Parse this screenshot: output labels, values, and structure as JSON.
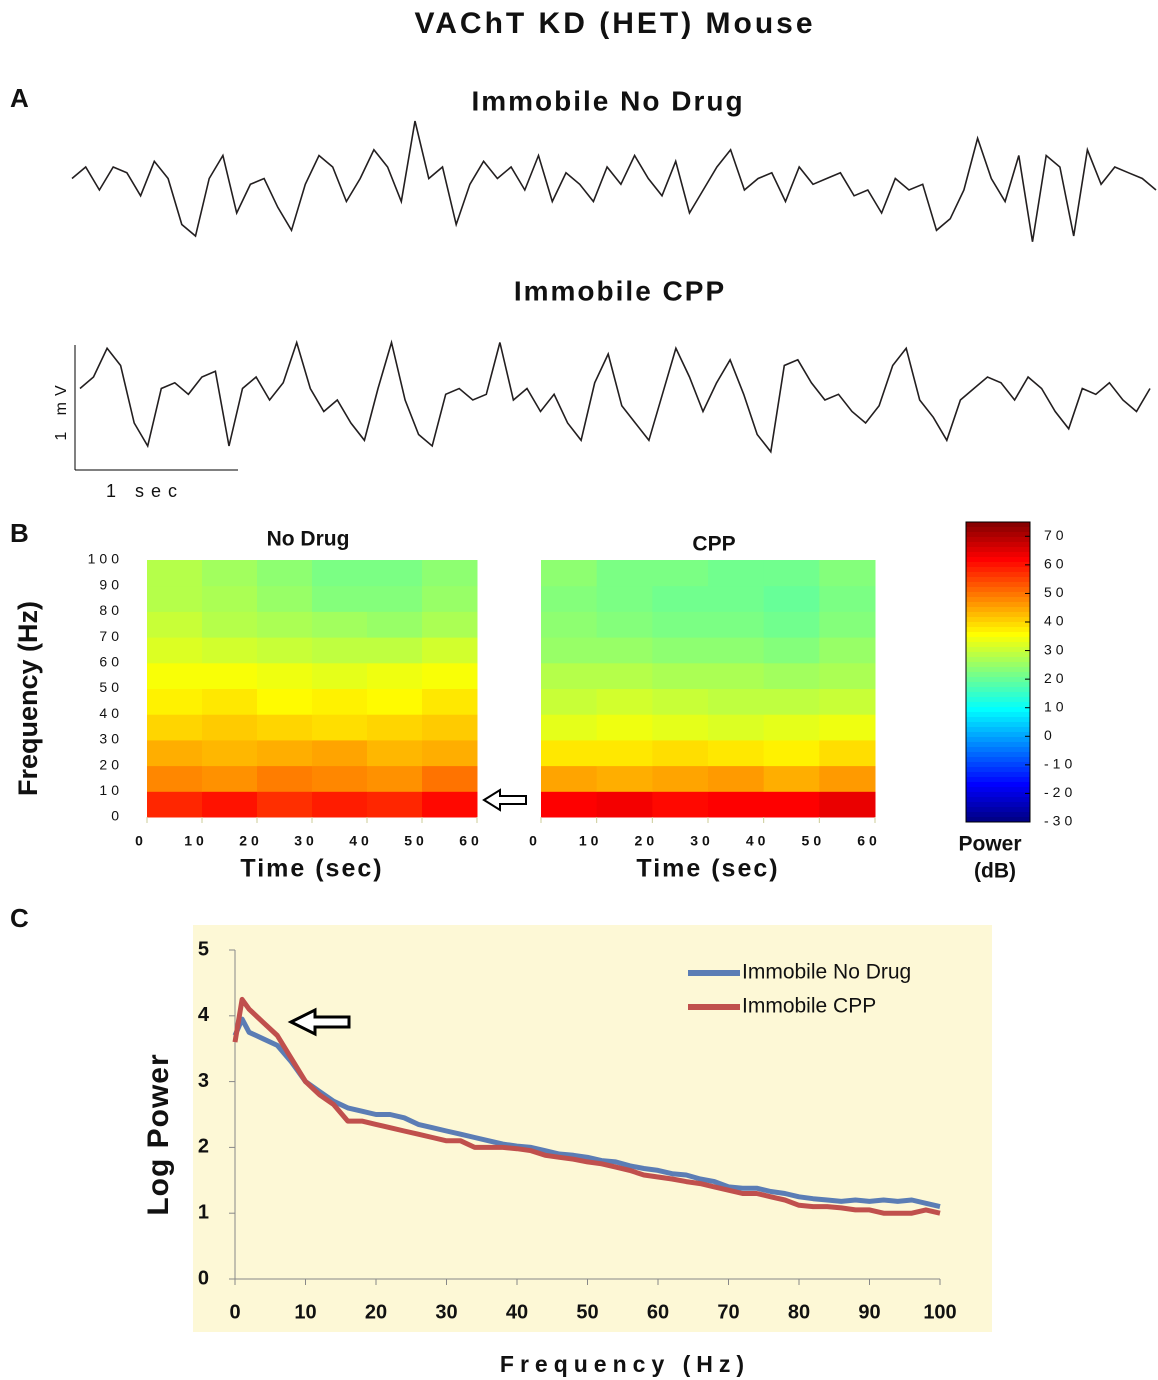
{
  "title": "VAChT KD (HET) Mouse",
  "panel_labels": [
    "A",
    "B",
    "C"
  ],
  "chart_data": [
    {
      "type": "trace",
      "title": "Immobile No Drug",
      "color": "#231f20",
      "values": [
        0.1,
        0.2,
        0,
        0.2,
        0.15,
        -0.05,
        0.25,
        0.1,
        -0.3,
        -0.4,
        0.1,
        0.3,
        -0.2,
        0.05,
        0.1,
        -0.15,
        -0.35,
        0.05,
        0.3,
        0.2,
        -0.1,
        0.1,
        0.35,
        0.2,
        -0.1,
        0.6,
        0.1,
        0.2,
        -0.3,
        0.05,
        0.25,
        0.1,
        0.2,
        0,
        0.3,
        -0.1,
        0.15,
        0.05,
        -0.1,
        0.2,
        0.05,
        0.3,
        0.1,
        -0.05,
        0.25,
        -0.2,
        0,
        0.2,
        0.35,
        0,
        0.1,
        0.15,
        -0.1,
        0.2,
        0.05,
        0.1,
        0.15,
        -0.05,
        0,
        -0.2,
        0.1,
        0,
        0.05,
        -0.35,
        -0.25,
        0,
        0.45,
        0.1,
        -0.1,
        0.3,
        -0.45,
        0.3,
        0.2,
        -0.4,
        0.35,
        0.05,
        0.2,
        0.15,
        0.1,
        0
      ]
    },
    {
      "type": "trace",
      "title": "Immobile CPP",
      "color": "#231f20",
      "scale_y_label": "1 mV",
      "scale_x_label": "1 sec",
      "values": [
        0.1,
        0.2,
        0.45,
        0.3,
        -0.2,
        -0.4,
        0.1,
        0.15,
        0.05,
        0.2,
        0.25,
        -0.4,
        0.1,
        0.2,
        0,
        0.15,
        0.5,
        0.1,
        -0.1,
        0,
        -0.2,
        -0.35,
        0.1,
        0.5,
        0,
        -0.3,
        -0.4,
        0.05,
        0.1,
        0,
        0.05,
        0.5,
        0,
        0.1,
        -0.1,
        0.05,
        -0.2,
        -0.35,
        0.15,
        0.4,
        -0.05,
        -0.2,
        -0.35,
        0.05,
        0.45,
        0.2,
        -0.1,
        0.15,
        0.35,
        0.05,
        -0.3,
        -0.45,
        0.3,
        0.35,
        0.15,
        0,
        0.05,
        -0.1,
        -0.2,
        -0.05,
        0.3,
        0.45,
        0,
        -0.15,
        -0.35,
        0,
        0.1,
        0.2,
        0.15,
        0,
        0.2,
        0.1,
        -0.1,
        -0.25,
        0.1,
        0.05,
        0.15,
        0,
        -0.1,
        0.1
      ]
    },
    {
      "type": "heatmap",
      "title": "No Drug",
      "xlabel": "Time (sec)",
      "ylabel": "Frequency (Hz)",
      "xlim": [
        0,
        60
      ],
      "ylim": [
        0,
        100
      ],
      "xticks": [
        0,
        10,
        20,
        30,
        40,
        50,
        60
      ],
      "yticks": [
        0,
        10,
        20,
        30,
        40,
        50,
        60,
        70,
        80,
        90,
        100
      ],
      "z": [
        [
          58,
          60,
          57,
          59,
          58,
          61
        ],
        [
          48,
          47,
          49,
          48,
          47,
          50
        ],
        [
          44,
          43,
          44,
          45,
          43,
          44
        ],
        [
          40,
          41,
          40,
          39,
          40,
          41
        ],
        [
          37,
          38,
          36,
          37,
          36,
          38
        ],
        [
          35,
          35,
          34,
          33,
          34,
          35
        ],
        [
          32,
          31,
          30,
          29,
          29,
          31
        ],
        [
          30,
          28,
          27,
          26,
          25,
          27
        ],
        [
          28,
          27,
          25,
          23,
          23,
          25
        ],
        [
          28,
          26,
          24,
          22,
          22,
          24
        ]
      ]
    },
    {
      "type": "heatmap",
      "title": "CPP",
      "xlabel": "Time (sec)",
      "xlim": [
        0,
        60
      ],
      "ylim": [
        0,
        100
      ],
      "xticks": [
        0,
        10,
        20,
        30,
        40,
        50,
        60
      ],
      "z": [
        [
          62,
          63,
          61,
          62,
          62,
          64
        ],
        [
          45,
          44,
          45,
          46,
          44,
          46
        ],
        [
          38,
          38,
          39,
          38,
          37,
          39
        ],
        [
          33,
          34,
          33,
          32,
          33,
          34
        ],
        [
          30,
          31,
          30,
          29,
          29,
          30
        ],
        [
          28,
          28,
          27,
          27,
          26,
          27
        ],
        [
          25,
          25,
          24,
          24,
          23,
          25
        ],
        [
          24,
          23,
          22,
          22,
          21,
          23
        ],
        [
          23,
          22,
          21,
          21,
          20,
          22
        ],
        [
          24,
          22,
          22,
          21,
          21,
          23
        ]
      ]
    },
    {
      "type": "colorbar",
      "title": "Power",
      "unit": "(dB)",
      "lim": [
        -30,
        75
      ],
      "ticks": [
        -30,
        -20,
        -10,
        0,
        10,
        20,
        30,
        40,
        50,
        60,
        70
      ]
    },
    {
      "type": "line",
      "xlabel": "Frequency (Hz)",
      "ylabel": "Log Power",
      "xlim": [
        0,
        100
      ],
      "ylim": [
        0,
        5
      ],
      "xticks": [
        0,
        10,
        20,
        30,
        40,
        50,
        60,
        70,
        80,
        90,
        100
      ],
      "yticks": [
        0,
        1,
        2,
        3,
        4,
        5
      ],
      "x": [
        0,
        1,
        2,
        4,
        6,
        8,
        10,
        12,
        14,
        16,
        18,
        20,
        22,
        24,
        26,
        28,
        30,
        32,
        34,
        36,
        38,
        40,
        42,
        44,
        46,
        48,
        50,
        52,
        54,
        56,
        58,
        60,
        62,
        64,
        66,
        68,
        70,
        72,
        74,
        76,
        78,
        80,
        82,
        84,
        86,
        88,
        90,
        92,
        94,
        96,
        98,
        100
      ],
      "series": [
        {
          "name": "Immobile No Drug",
          "color": "#5b7db5",
          "values": [
            3.7,
            3.95,
            3.75,
            3.65,
            3.55,
            3.3,
            3.0,
            2.85,
            2.7,
            2.6,
            2.55,
            2.5,
            2.5,
            2.45,
            2.35,
            2.3,
            2.25,
            2.2,
            2.15,
            2.1,
            2.05,
            2.02,
            2.0,
            1.95,
            1.9,
            1.88,
            1.85,
            1.8,
            1.78,
            1.72,
            1.68,
            1.65,
            1.6,
            1.58,
            1.52,
            1.48,
            1.4,
            1.38,
            1.38,
            1.33,
            1.3,
            1.25,
            1.22,
            1.2,
            1.18,
            1.2,
            1.18,
            1.2,
            1.18,
            1.2,
            1.15,
            1.1
          ]
        },
        {
          "name": "Immobile CPP",
          "color": "#c0504d",
          "values": [
            3.6,
            4.25,
            4.1,
            3.9,
            3.7,
            3.35,
            3.0,
            2.8,
            2.65,
            2.4,
            2.4,
            2.35,
            2.3,
            2.25,
            2.2,
            2.15,
            2.1,
            2.1,
            2.0,
            2.0,
            2.0,
            1.98,
            1.95,
            1.88,
            1.85,
            1.82,
            1.78,
            1.75,
            1.7,
            1.65,
            1.58,
            1.55,
            1.52,
            1.48,
            1.45,
            1.4,
            1.35,
            1.3,
            1.3,
            1.25,
            1.2,
            1.12,
            1.1,
            1.1,
            1.08,
            1.05,
            1.05,
            1.0,
            1.0,
            1.0,
            1.05,
            1.0
          ]
        }
      ]
    }
  ]
}
